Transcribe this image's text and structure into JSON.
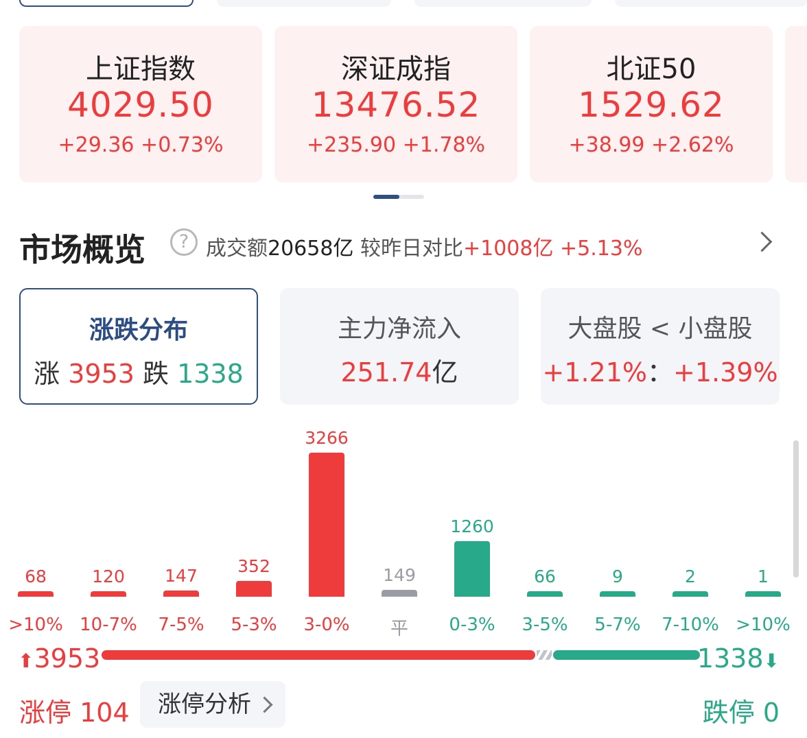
{
  "indices": [
    {
      "name": "上证指数",
      "value": "4029.50",
      "change": "+29.36 +0.73%"
    },
    {
      "name": "深证成指",
      "value": "13476.52",
      "change": "+235.90 +1.78%"
    },
    {
      "name": "北证50",
      "value": "1529.62",
      "change": "+38.99 +2.62%"
    }
  ],
  "overview": {
    "title": "市场概览",
    "help_icon": "?",
    "turnover_label": "成交额",
    "turnover_value": "20658亿",
    "compare_label": " 较昨日对比",
    "compare_value": "+1008亿",
    "compare_pct": " +5.13%"
  },
  "summary_cards": {
    "distribution": {
      "title": "涨跌分布",
      "up_label": "涨 ",
      "up_count": "3953",
      "down_label": " 跌 ",
      "down_count": "1338"
    },
    "net_inflow": {
      "title": "主力净流入",
      "value": "251.74",
      "unit": "亿"
    },
    "cap_compare": {
      "title": "大盘股 < 小盘股",
      "large": "+1.21%",
      "separator": "：",
      "small": "+1.39%"
    }
  },
  "chart_data": {
    "type": "bar",
    "categories": [
      ">10%",
      "10-7%",
      "7-5%",
      "5-3%",
      "3-0%",
      "平",
      "0-3%",
      "3-5%",
      "5-7%",
      "7-10%",
      ">10%"
    ],
    "values": [
      68,
      120,
      147,
      352,
      3266,
      149,
      1260,
      66,
      9,
      2,
      1
    ],
    "value_labels": [
      "68",
      "120",
      "147",
      "352",
      "3266",
      "149",
      "1260",
      "66",
      "9",
      "2",
      "1"
    ],
    "groups": [
      "up",
      "up",
      "up",
      "up",
      "up",
      "flat",
      "down",
      "down",
      "down",
      "down",
      "down"
    ],
    "colors": {
      "up": "#ee3b3b",
      "flat": "#9a9ca3",
      "down": "#27a98a"
    }
  },
  "totals": {
    "up_arrow": "⬆",
    "up": "3953",
    "down": "1338",
    "down_arrow": "⬇",
    "up_ratio": 0.7471
  },
  "limits": {
    "up_label": "涨停 ",
    "up_value": "104",
    "analysis_button": "涨停分析",
    "down_label": "跌停 ",
    "down_value": "0"
  }
}
